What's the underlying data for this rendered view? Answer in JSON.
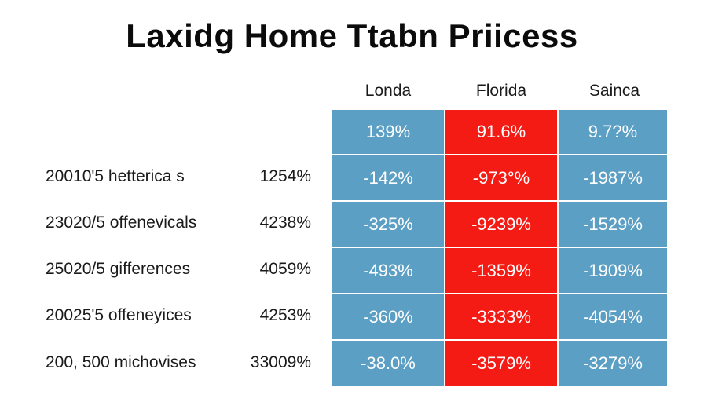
{
  "title": "Laxidg Home Ttabn Priicess",
  "colors": {
    "blue": "#5c9fc4",
    "red": "#f51b15"
  },
  "chart_data": {
    "type": "table",
    "title": "Laxidg Home Ttabn Priicess",
    "columns": [
      "Londa",
      "Florida",
      "Sainca"
    ],
    "column_colors": [
      "blue",
      "red",
      "blue"
    ],
    "header_row": [
      "139%",
      "91.6%",
      "9.7?%"
    ],
    "rows": [
      {
        "label": "20010'5 hetterica s",
        "value": "1254%",
        "cells": [
          "-142%",
          "-973°%",
          "-1987%"
        ]
      },
      {
        "label": "23020/5 offenevicals",
        "value": "4238%",
        "cells": [
          "-325%",
          "-9239%",
          "-1529%"
        ]
      },
      {
        "label": "25020/5 gifferences",
        "value": "4059%",
        "cells": [
          "-493%",
          "-1359%",
          "-1909%"
        ]
      },
      {
        "label": "20025'5 offeneyices",
        "value": "4253%",
        "cells": [
          "-360%",
          "-3333%",
          "-4054%"
        ]
      },
      {
        "label": "200, 500 michovises",
        "value": "33009%",
        "cells": [
          "-38.0%",
          "-3579%",
          "-3279%"
        ]
      }
    ]
  }
}
